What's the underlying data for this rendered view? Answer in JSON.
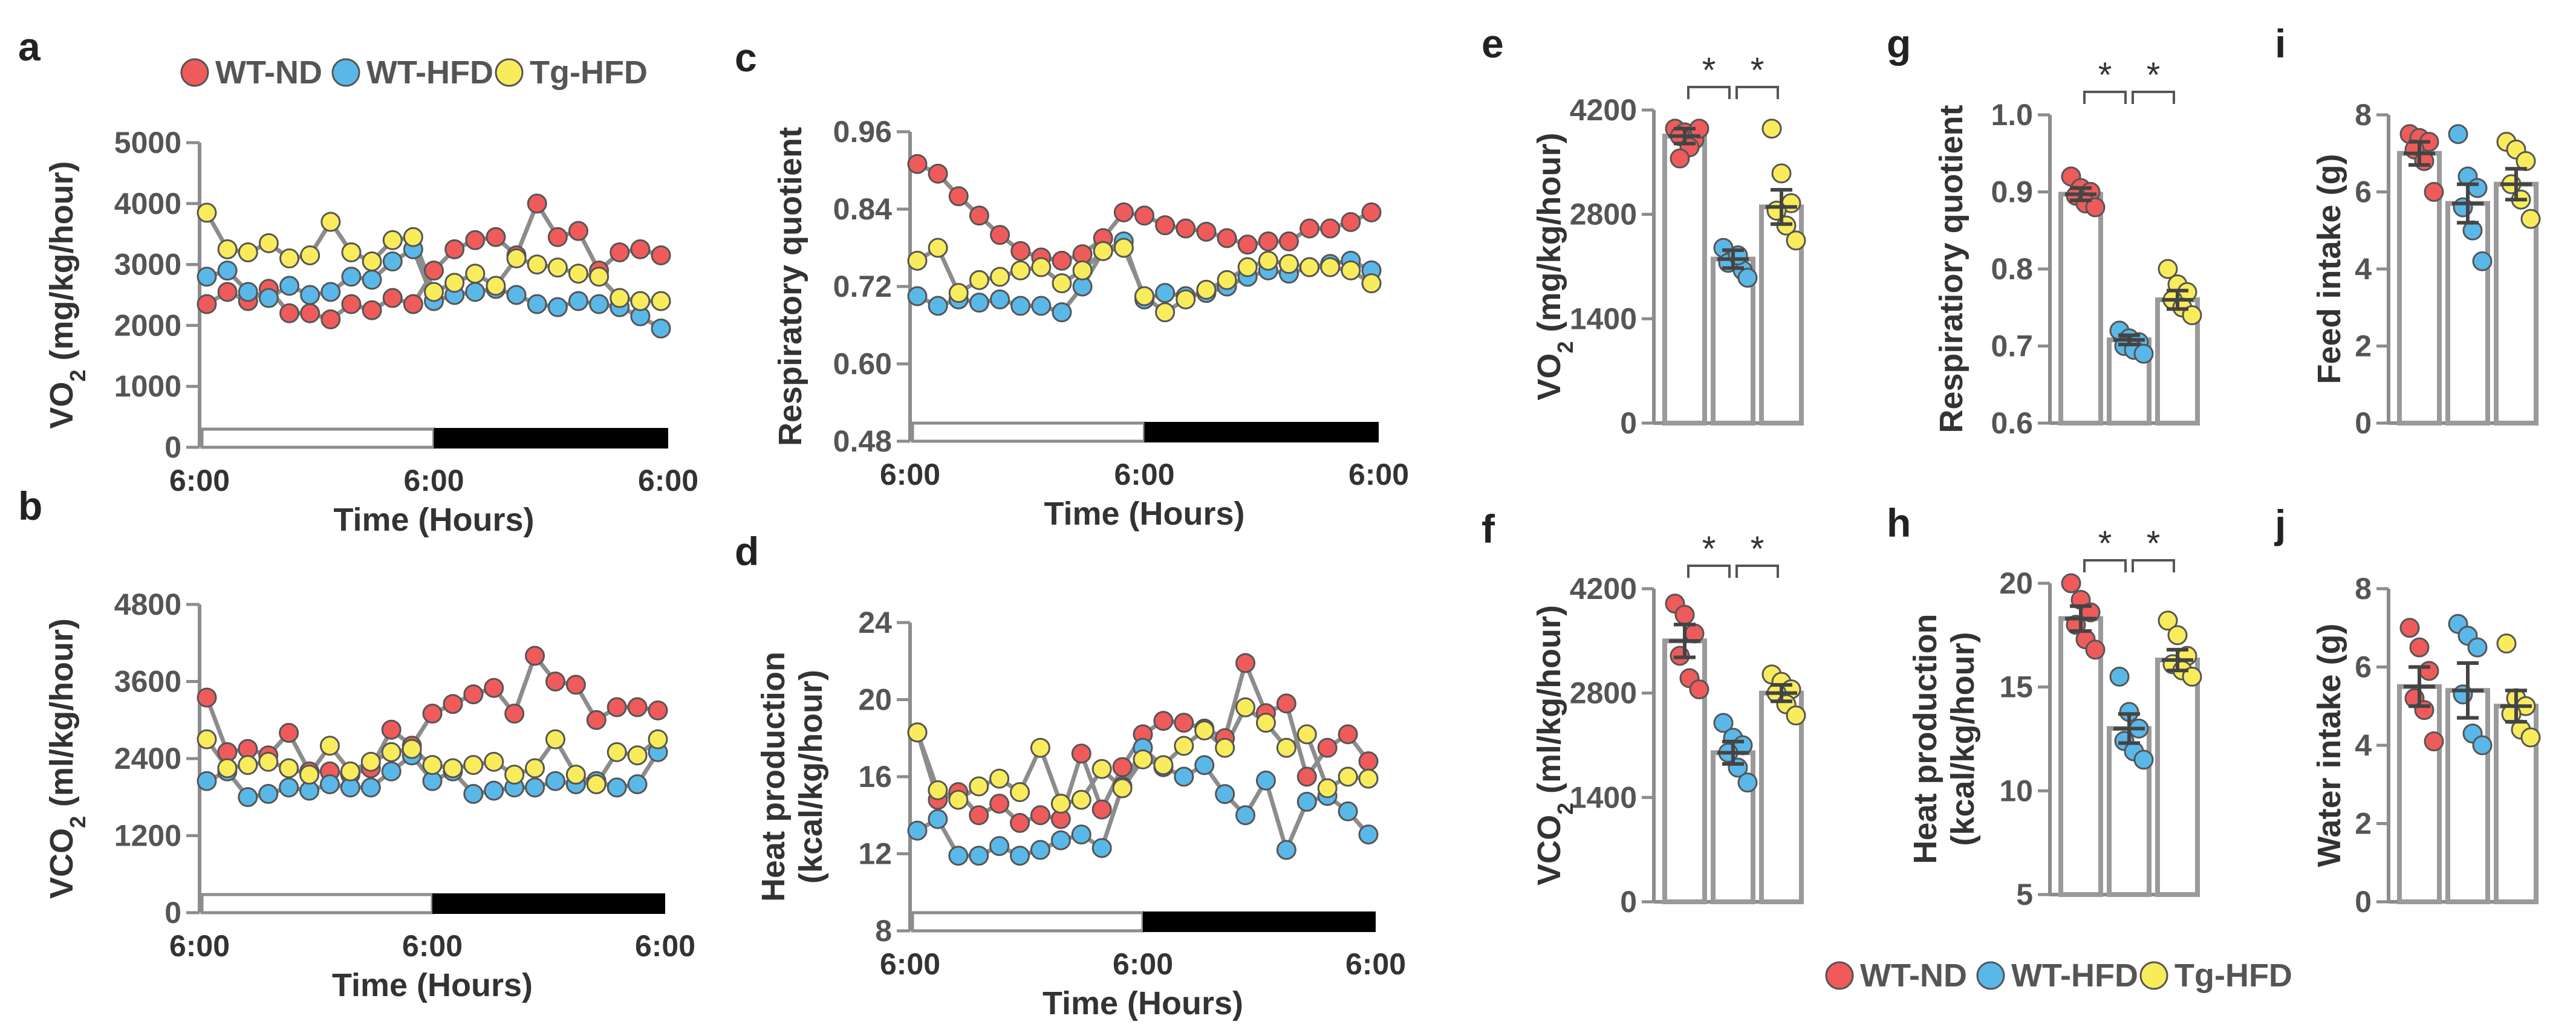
{
  "colors": {
    "WT-ND": "#ef5b5b",
    "WT-HFD": "#5ab8e8",
    "Tg-HFD": "#f9ec5c",
    "axis": "#8c8c8c",
    "line": "#8c8c8c",
    "bar": "#9a9a9a"
  },
  "legend_top": [
    "WT-ND",
    "WT-HFD",
    "Tg-HFD"
  ],
  "legend_bottom": [
    "WT-ND",
    "WT-HFD",
    "Tg-HFD"
  ],
  "chart_data": [
    {
      "panel": "a",
      "type": "line",
      "ylabel": "VO",
      "ylabel_sub": "2",
      "ylabel_rest": " (mg/kg/hour)",
      "xlabel": "Time (Hours)",
      "xticks": [
        "6:00",
        "6:00",
        "6:00"
      ],
      "yticks": [
        0,
        1000,
        2000,
        3000,
        4000,
        5000
      ],
      "ylim": [
        0,
        5000
      ],
      "light_dark_bar": "left half light (white), right half dark (black)",
      "series": [
        {
          "name": "WT-ND",
          "values": [
            2350,
            2550,
            2400,
            2600,
            2200,
            2200,
            2100,
            2350,
            2250,
            2450,
            2350,
            2900,
            3250,
            3400,
            3450,
            3150,
            4000,
            3450,
            3550,
            2900,
            3200,
            3250,
            3150
          ]
        },
        {
          "name": "WT-HFD",
          "values": [
            2800,
            2900,
            2550,
            2450,
            2650,
            2500,
            2550,
            2800,
            2750,
            3050,
            3250,
            2400,
            2500,
            2550,
            2600,
            2500,
            2350,
            2300,
            2400,
            2350,
            2300,
            2150,
            1950
          ]
        },
        {
          "name": "Tg-HFD",
          "values": [
            3850,
            3250,
            3200,
            3350,
            3100,
            3150,
            3700,
            3200,
            3050,
            3400,
            3450,
            2550,
            2700,
            2850,
            2650,
            3100,
            3000,
            2950,
            2850,
            2800,
            2450,
            2400,
            2400
          ]
        }
      ]
    },
    {
      "panel": "b",
      "type": "line",
      "ylabel": "VCO",
      "ylabel_sub": "2",
      "ylabel_rest": " (ml/kg/hour)",
      "xlabel": "Time (Hours)",
      "xticks": [
        "6:00",
        "6:00",
        "6:00"
      ],
      "yticks": [
        0,
        1200,
        2400,
        3600,
        4800
      ],
      "ylim": [
        0,
        4800
      ],
      "light_dark_bar": "left half light (white), right half dark (black)",
      "series": [
        {
          "name": "WT-ND",
          "values": [
            3350,
            2500,
            2550,
            2450,
            2800,
            2200,
            2200,
            2150,
            2250,
            2850,
            2600,
            3100,
            3250,
            3400,
            3500,
            3100,
            4000,
            3600,
            3550,
            3000,
            3200,
            3200,
            3150
          ]
        },
        {
          "name": "WT-HFD",
          "values": [
            2050,
            2200,
            1800,
            1850,
            1950,
            1900,
            2000,
            1950,
            1950,
            2200,
            2450,
            2050,
            2200,
            1850,
            1900,
            1950,
            1950,
            2050,
            2000,
            2050,
            1950,
            2000,
            2500
          ]
        },
        {
          "name": "Tg-HFD",
          "values": [
            2700,
            2250,
            2300,
            2350,
            2250,
            2150,
            2600,
            2200,
            2350,
            2500,
            2550,
            2300,
            2250,
            2300,
            2350,
            2150,
            2250,
            2700,
            2150,
            2000,
            2500,
            2450,
            2700
          ]
        }
      ]
    },
    {
      "panel": "c",
      "type": "line",
      "ylabel": "Respiratory quotient",
      "xlabel": "Time (Hours)",
      "xticks": [
        "6:00",
        "6:00",
        "6:00"
      ],
      "yticks": [
        "0.48",
        "0.60",
        "0.72",
        "0.84",
        "0.96"
      ],
      "ylim": [
        0.48,
        0.96
      ],
      "light_dark_bar": "left half light (white), right half dark (black)",
      "series": [
        {
          "name": "WT-ND",
          "values": [
            0.91,
            0.895,
            0.86,
            0.83,
            0.8,
            0.775,
            0.765,
            0.76,
            0.77,
            0.795,
            0.835,
            0.83,
            0.815,
            0.81,
            0.805,
            0.795,
            0.785,
            0.79,
            0.79,
            0.81,
            0.81,
            0.82,
            0.835
          ]
        },
        {
          "name": "WT-HFD",
          "values": [
            0.705,
            0.69,
            0.7,
            0.695,
            0.7,
            0.69,
            0.69,
            0.68,
            0.72,
            0.775,
            0.79,
            0.7,
            0.71,
            0.705,
            0.71,
            0.72,
            0.735,
            0.745,
            0.74,
            0.75,
            0.755,
            0.76,
            0.745
          ]
        },
        {
          "name": "Tg-HFD",
          "values": [
            0.76,
            0.78,
            0.71,
            0.73,
            0.735,
            0.745,
            0.75,
            0.725,
            0.745,
            0.775,
            0.78,
            0.705,
            0.68,
            0.7,
            0.715,
            0.73,
            0.75,
            0.76,
            0.755,
            0.75,
            0.75,
            0.745,
            0.725
          ]
        }
      ]
    },
    {
      "panel": "d",
      "type": "line",
      "ylabel": "Heat production",
      "ylabel2": "(kcal/kg/hour)",
      "xlabel": "Time (Hours)",
      "xticks": [
        "6:00",
        "6:00",
        "6:00"
      ],
      "yticks": [
        8,
        12,
        16,
        20,
        24
      ],
      "ylim": [
        8,
        24
      ],
      "light_dark_bar": "left half light (white), right half dark (black)",
      "series": [
        {
          "name": "WT-ND",
          "values": [
            18.3,
            14.8,
            15.2,
            14.0,
            14.6,
            13.6,
            14.0,
            13.8,
            17.2,
            14.3,
            16.5,
            18.2,
            18.9,
            18.8,
            18.5,
            18.0,
            21.9,
            19.3,
            19.8,
            16.0,
            17.5,
            18.2,
            16.8
          ]
        },
        {
          "name": "WT-HFD",
          "values": [
            13.2,
            13.8,
            11.9,
            11.9,
            12.4,
            11.9,
            12.2,
            12.7,
            13.0,
            12.3,
            15.5,
            17.5,
            16.5,
            16.0,
            16.6,
            15.1,
            14.0,
            15.8,
            12.2,
            14.7,
            15.0,
            14.2,
            13.0
          ]
        },
        {
          "name": "Tg-HFD",
          "values": [
            18.3,
            15.3,
            14.8,
            15.5,
            15.9,
            15.2,
            17.5,
            14.6,
            14.8,
            16.4,
            15.4,
            16.9,
            16.6,
            17.6,
            18.4,
            17.5,
            19.6,
            18.8,
            17.5,
            18.2,
            15.4,
            16.0,
            15.9
          ]
        }
      ]
    },
    {
      "panel": "e",
      "type": "bar",
      "ylabel": "VO",
      "ylabel_sub": "2",
      "ylabel_rest": " (mg/kg/hour)",
      "categories": [
        "WT-ND",
        "WT-HFD",
        "Tg-HFD"
      ],
      "values": [
        3850,
        2200,
        2900
      ],
      "sem": [
        100,
        120,
        230
      ],
      "yticks": [
        0,
        1400,
        2800,
        4200
      ],
      "ylim": [
        0,
        4200
      ],
      "points": [
        [
          3950,
          3900,
          3800,
          3850,
          3700,
          3950,
          3550
        ],
        [
          2350,
          2200,
          2050,
          2150,
          2250,
          1950
        ],
        [
          3950,
          3350,
          2950,
          2850,
          2650,
          2450
        ]
      ],
      "significance": [
        "*",
        "*"
      ]
    },
    {
      "panel": "f",
      "type": "bar",
      "ylabel": "VCO",
      "ylabel_sub": "2",
      "ylabel_rest": " (ml/kg/hour)",
      "categories": [
        "WT-ND",
        "WT-HFD",
        "Tg-HFD"
      ],
      "values": [
        3500,
        2000,
        2800
      ],
      "sem": [
        220,
        150,
        110
      ],
      "yticks": [
        0,
        1400,
        2800,
        4200
      ],
      "ylim": [
        0,
        4200
      ],
      "points": [
        [
          4000,
          3850,
          3600,
          3300,
          3000,
          2850
        ],
        [
          2400,
          2200,
          2100,
          2000,
          1800,
          1600
        ],
        [
          3050,
          2950,
          2850,
          2800,
          2650,
          2500
        ]
      ],
      "significance": [
        "*",
        "*"
      ]
    },
    {
      "panel": "g",
      "type": "bar",
      "ylabel": "Respiratiory quotient",
      "categories": [
        "WT-ND",
        "WT-HFD",
        "Tg-HFD"
      ],
      "values": [
        0.897,
        0.708,
        0.76
      ],
      "sem": [
        0.008,
        0.006,
        0.012
      ],
      "yticks": [
        "0.6",
        "0.7",
        "0.8",
        "0.9",
        "1.0"
      ],
      "ylim": [
        0.6,
        1.0
      ],
      "points": [
        [
          0.92,
          0.905,
          0.9,
          0.895,
          0.885,
          0.88
        ],
        [
          0.72,
          0.71,
          0.705,
          0.7,
          0.695,
          0.69
        ],
        [
          0.8,
          0.78,
          0.77,
          0.76,
          0.75,
          0.74
        ]
      ],
      "significance": [
        "*",
        "*"
      ]
    },
    {
      "panel": "h",
      "type": "bar",
      "ylabel": "Heat production",
      "ylabel2": "(kcal/kg/hour)",
      "categories": [
        "WT-ND",
        "WT-HFD",
        "Tg-HFD"
      ],
      "values": [
        18.3,
        13.0,
        16.3
      ],
      "sem": [
        0.6,
        0.7,
        0.5
      ],
      "yticks": [
        5,
        10,
        15,
        20
      ],
      "ylim": [
        5,
        20
      ],
      "points": [
        [
          20.0,
          19.2,
          18.6,
          18.0,
          17.3,
          16.8
        ],
        [
          15.5,
          13.8,
          13.0,
          12.4,
          11.9,
          11.5
        ],
        [
          18.2,
          17.5,
          16.5,
          16.1,
          15.8,
          15.5
        ]
      ],
      "significance": [
        "*",
        "*"
      ]
    },
    {
      "panel": "i",
      "type": "bar",
      "ylabel": "Feed intake (g)",
      "categories": [
        "WT-ND",
        "WT-HFD",
        "Tg-HFD"
      ],
      "values": [
        7.0,
        5.7,
        6.2
      ],
      "sem": [
        0.3,
        0.5,
        0.4
      ],
      "yticks": [
        0,
        2,
        4,
        6,
        8
      ],
      "ylim": [
        0,
        8
      ],
      "points": [
        [
          7.5,
          7.4,
          7.3,
          7.1,
          6.8,
          6.0
        ],
        [
          7.5,
          6.4,
          6.1,
          5.6,
          5.0,
          4.2
        ],
        [
          7.3,
          7.1,
          6.8,
          6.2,
          5.8,
          5.3
        ]
      ],
      "significance": []
    },
    {
      "panel": "j",
      "type": "bar",
      "ylabel": "Water intake (g)",
      "categories": [
        "WT-ND",
        "WT-HFD",
        "Tg-HFD"
      ],
      "values": [
        5.5,
        5.4,
        5.0
      ],
      "sem": [
        0.5,
        0.7,
        0.4
      ],
      "yticks": [
        0,
        2,
        4,
        6,
        8
      ],
      "ylim": [
        0,
        8
      ],
      "points": [
        [
          7.0,
          6.5,
          5.9,
          5.2,
          4.9,
          4.1
        ],
        [
          7.1,
          6.8,
          6.5,
          5.3,
          4.3,
          4.0
        ],
        [
          6.6,
          5.2,
          5.0,
          4.8,
          4.4,
          4.2
        ]
      ],
      "significance": []
    }
  ]
}
